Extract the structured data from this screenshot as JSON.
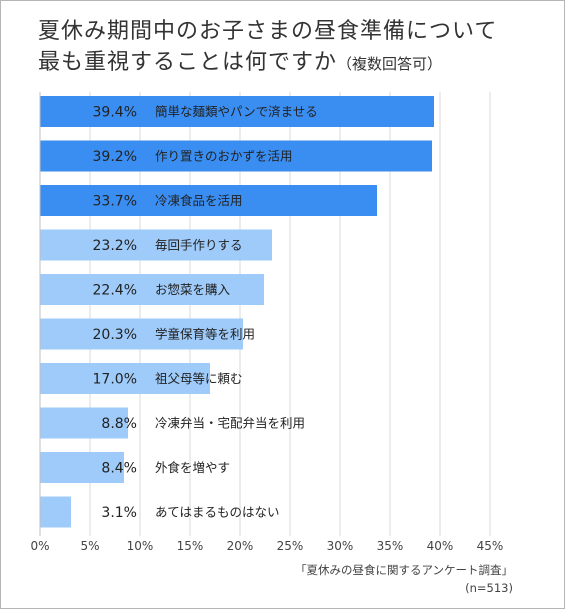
{
  "chart_data": {
    "type": "bar",
    "orientation": "horizontal",
    "title_line1": "夏休み期間中のお子さまの昼食準備について",
    "title_line2": "最も重視することは何ですか",
    "title_note": "（複数回答可）",
    "categories": [
      "簡単な麺類やパンで済ませる",
      "作り置きのおかずを活用",
      "冷凍食品を活用",
      "毎回手作りする",
      "お惣菜を購入",
      "学童保育等を利用",
      "祖父母等に頼む",
      "冷凍弁当・宅配弁当を利用",
      "外食を増やす",
      "あてはまるものはない"
    ],
    "values": [
      39.4,
      39.2,
      33.7,
      23.2,
      22.4,
      20.3,
      17.0,
      8.8,
      8.4,
      3.1
    ],
    "value_labels": [
      "39.4%",
      "39.2%",
      "33.7%",
      "23.2%",
      "22.4%",
      "20.3%",
      "17.0%",
      "8.8%",
      "8.4%",
      "3.1%"
    ],
    "highlight_count": 3,
    "xlim": [
      0,
      45
    ],
    "xticks": [
      0,
      5,
      10,
      15,
      20,
      25,
      30,
      35,
      40,
      45
    ],
    "xtick_labels": [
      "0%",
      "5%",
      "10%",
      "15%",
      "20%",
      "25%",
      "30%",
      "35%",
      "40%",
      "45%"
    ],
    "grid": true,
    "colors": {
      "highlight": "#3a8ef2",
      "normal": "#9ecbfa",
      "grid": "#d9d9d9"
    }
  },
  "source": {
    "line1": "「夏休みの昼食に関するアンケート調査」",
    "line2": "(n=513)"
  }
}
